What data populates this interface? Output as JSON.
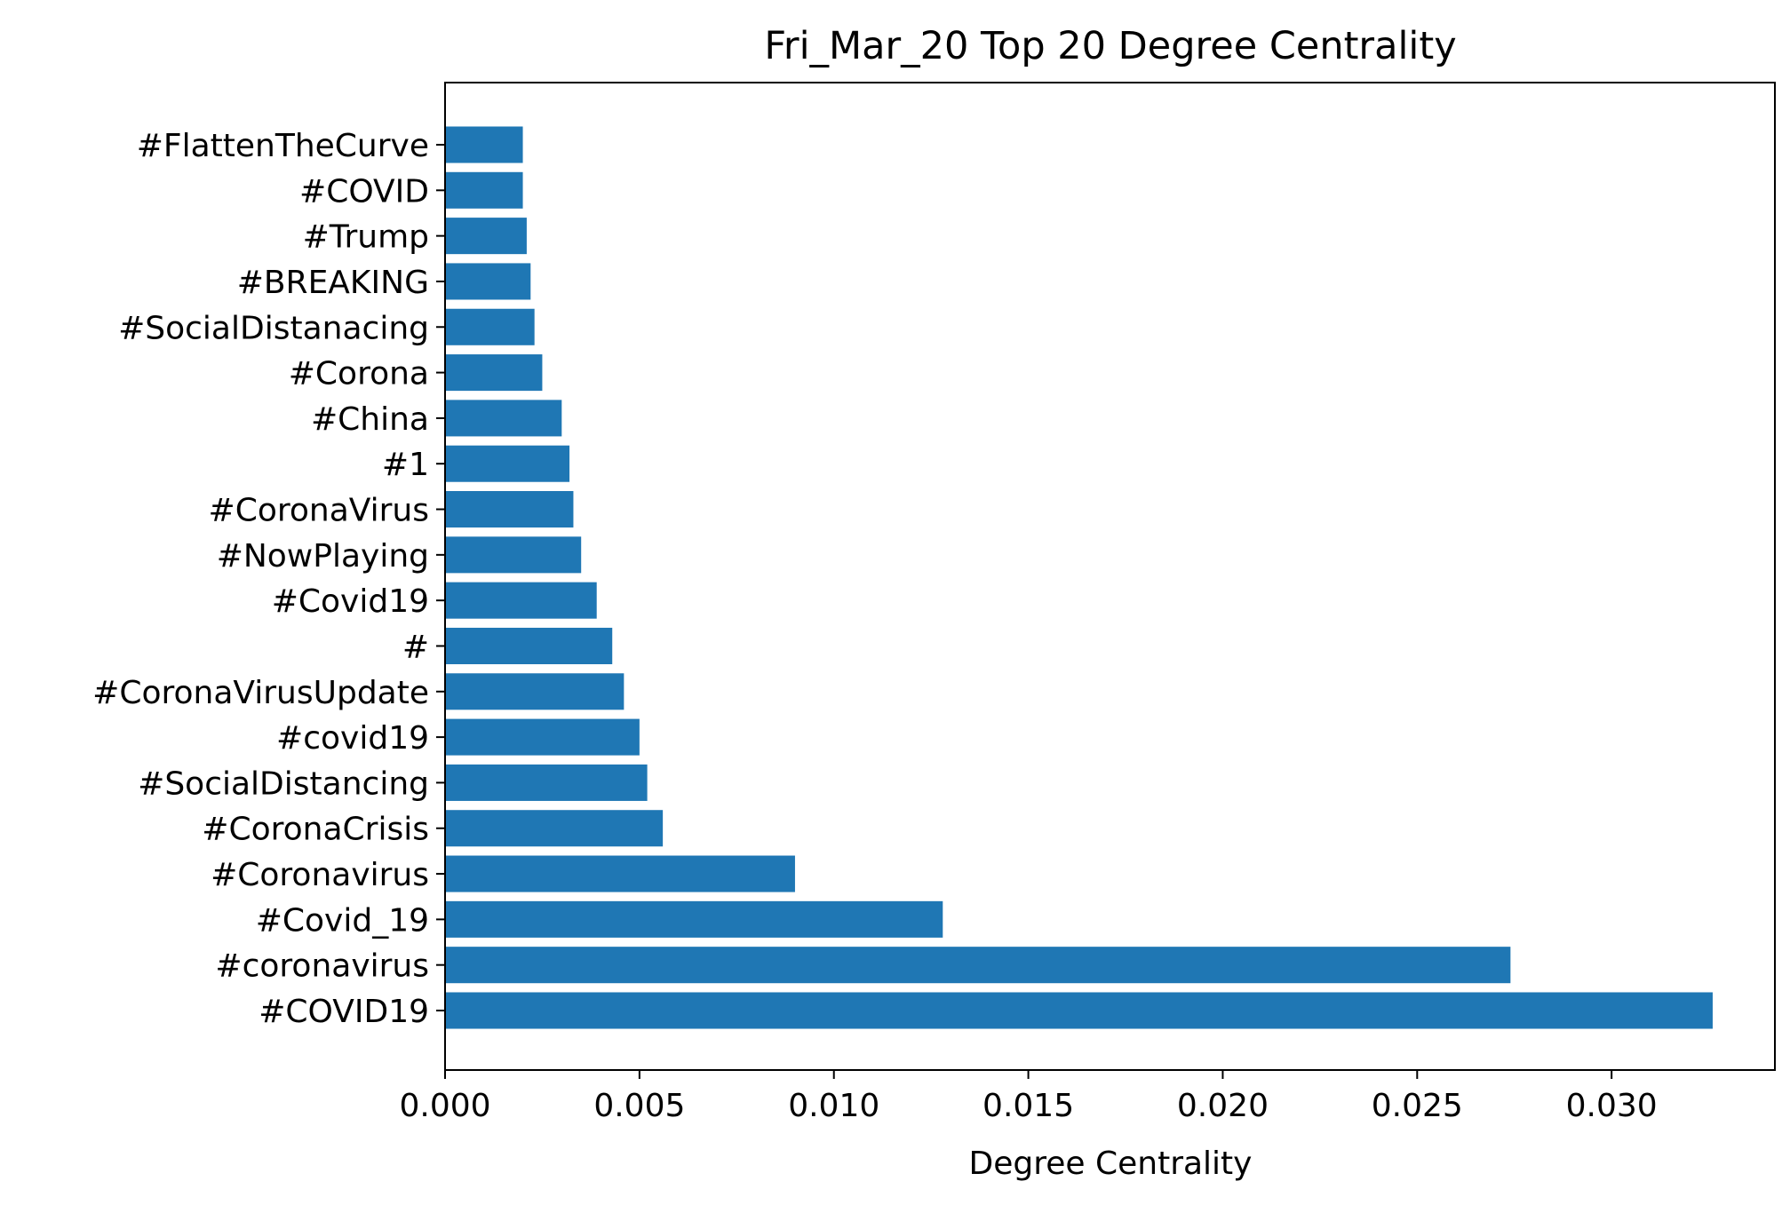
{
  "chart_data": {
    "type": "bar",
    "orientation": "horizontal",
    "title": "Fri_Mar_20 Top 20 Degree Centrality",
    "xlabel": "Degree Centrality",
    "ylabel": "",
    "xlim": [
      0,
      0.0342
    ],
    "xticks": [
      0.0,
      0.005,
      0.01,
      0.015,
      0.02,
      0.025,
      0.03
    ],
    "xtick_labels": [
      "0.000",
      "0.005",
      "0.010",
      "0.015",
      "0.020",
      "0.025",
      "0.030"
    ],
    "categories": [
      "#COVID19",
      "#coronavirus",
      "#Covid_19",
      "#Coronavirus",
      "#CoronaCrisis",
      "#SocialDistancing",
      "#covid19",
      "#CoronaVirusUpdate",
      "#",
      "#Covid19",
      "#NowPlaying",
      "#CoronaVirus",
      "#1",
      "#China",
      "#Corona",
      "#SocialDistanacing",
      "#BREAKING",
      "#Trump",
      "#COVID",
      "#FlattenTheCurve"
    ],
    "values": [
      0.0326,
      0.0274,
      0.0128,
      0.009,
      0.0056,
      0.0052,
      0.005,
      0.0046,
      0.0043,
      0.0039,
      0.0035,
      0.0033,
      0.0032,
      0.003,
      0.0025,
      0.0023,
      0.0022,
      0.0021,
      0.002,
      0.002
    ],
    "bar_color": "#1f77b4",
    "grid": false,
    "legend": "none"
  }
}
